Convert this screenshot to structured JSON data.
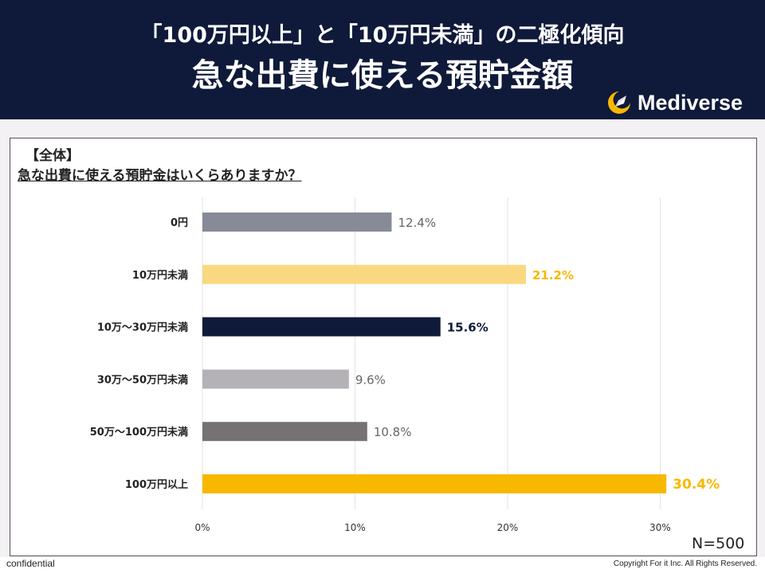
{
  "header": {
    "subtitle": "「100万円以上」と「10万円未満」の二極化傾向",
    "title": "急な出費に使える預貯金額",
    "brand": "Mediverse"
  },
  "section_label": "【全体】",
  "question": "急な出費に使える預貯金はいくらありますか？",
  "sample_size": "N=500",
  "footer": {
    "left": "confidential",
    "right": "Copyright For it Inc. All Rights Reserved."
  },
  "colors": {
    "header_bg": "#0f1a3a",
    "accent_yellow": "#f8b800",
    "light_yellow": "#fad880",
    "navy": "#0f1a3a"
  },
  "chart_data": {
    "type": "bar",
    "orientation": "horizontal",
    "categories": [
      "0円",
      "10万円未満",
      "10万～30万円未満",
      "30万～50万円未満",
      "50万～100万円未満",
      "100万円以上"
    ],
    "values": [
      12.4,
      21.2,
      15.6,
      9.6,
      10.8,
      30.4
    ],
    "value_labels": [
      "12.4%",
      "21.2%",
      "15.6%",
      "9.6%",
      "10.8%",
      "30.4%"
    ],
    "bar_colors": [
      "#878a97",
      "#fad880",
      "#0f1a3a",
      "#b4b2b6",
      "#767274",
      "#f8b800"
    ],
    "label_colors": [
      "#666666",
      "#f8b800",
      "#0f1a3a",
      "#666666",
      "#666666",
      "#f8b800"
    ],
    "label_bold": [
      false,
      true,
      true,
      false,
      false,
      true
    ],
    "xlim": [
      0,
      30
    ],
    "xticks": [
      0,
      10,
      20,
      30
    ],
    "xtick_labels": [
      "0%",
      "10%",
      "20%",
      "30%"
    ],
    "grid": true
  }
}
